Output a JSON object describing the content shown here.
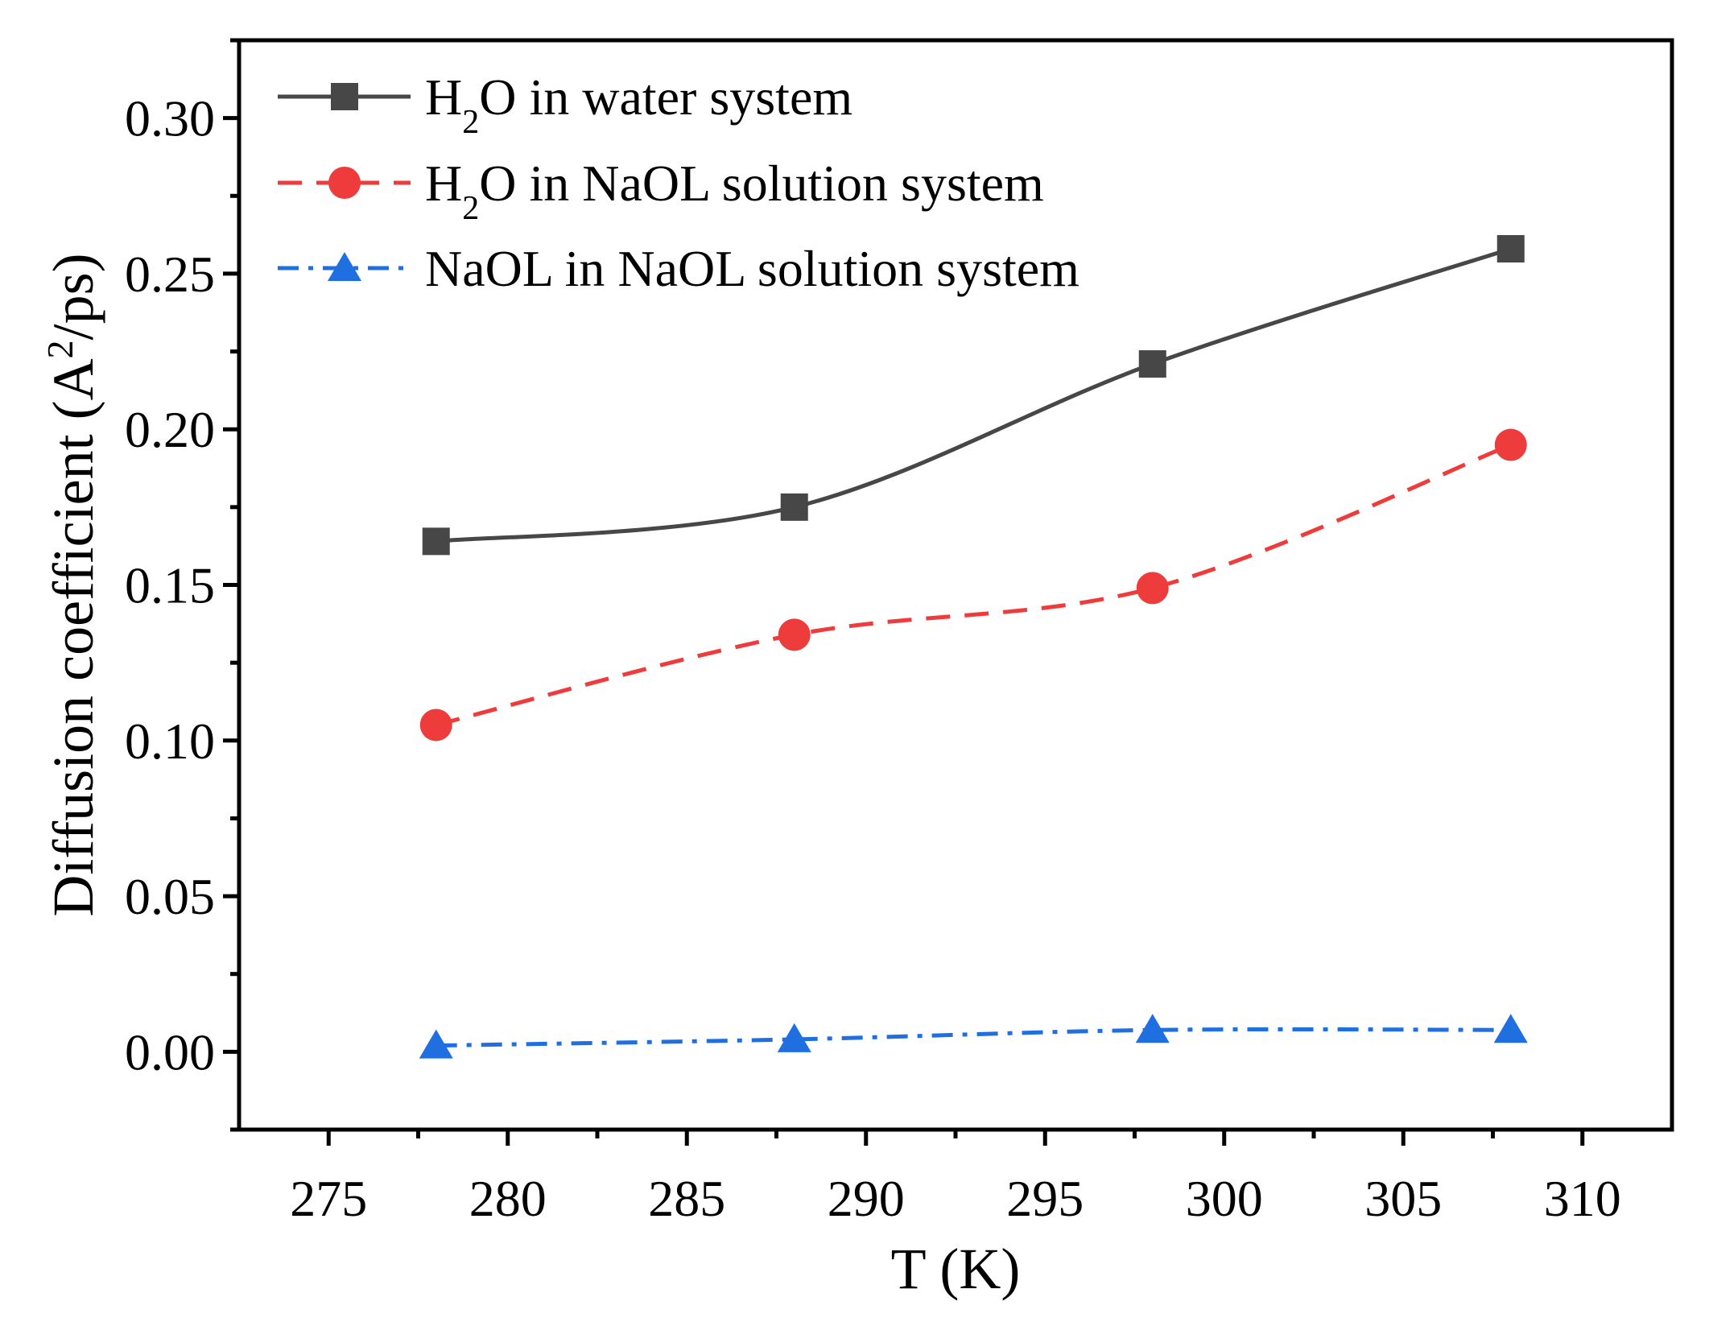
{
  "chart_data": {
    "type": "line",
    "xlabel": "T (K)",
    "ylabel": {
      "prefix": "Diffusion coefficient (A",
      "superscript": "2",
      "suffix": "/ps)"
    },
    "xlim": [
      272.5,
      312.5
    ],
    "ylim": [
      -0.025,
      0.325
    ],
    "xticks": [
      275,
      280,
      285,
      290,
      295,
      300,
      305,
      310
    ],
    "xtick_labels": [
      "275",
      "280",
      "285",
      "290",
      "295",
      "300",
      "305",
      "310"
    ],
    "yticks": [
      0.0,
      0.05,
      0.1,
      0.15,
      0.2,
      0.25,
      0.3
    ],
    "ytick_labels": [
      "0.00",
      "0.05",
      "0.10",
      "0.15",
      "0.20",
      "0.25",
      "0.30"
    ],
    "grid": false,
    "legend_position": "top-left",
    "x": [
      278,
      288,
      298,
      308
    ],
    "series": [
      {
        "name": "H2O in water system",
        "legend": {
          "pre": "H",
          "sub": "2",
          "post": "O in water system"
        },
        "values": [
          0.164,
          0.175,
          0.221,
          0.258
        ],
        "color": "#474747",
        "marker": "square",
        "line_style": "solid"
      },
      {
        "name": "H2O in NaOL solution system",
        "legend": {
          "pre": "H",
          "sub": "2",
          "post": "O in NaOL solution system"
        },
        "values": [
          0.105,
          0.134,
          0.149,
          0.195
        ],
        "color": "#ee3b3b",
        "marker": "circle",
        "line_style": "dashed"
      },
      {
        "name": "NaOL in NaOL solution system",
        "legend": {
          "pre": "NaOL in NaOL solution system",
          "sub": "",
          "post": ""
        },
        "values": [
          0.002,
          0.004,
          0.007,
          0.007
        ],
        "color": "#1f6fe0",
        "marker": "triangle",
        "line_style": "dashdot"
      }
    ]
  }
}
